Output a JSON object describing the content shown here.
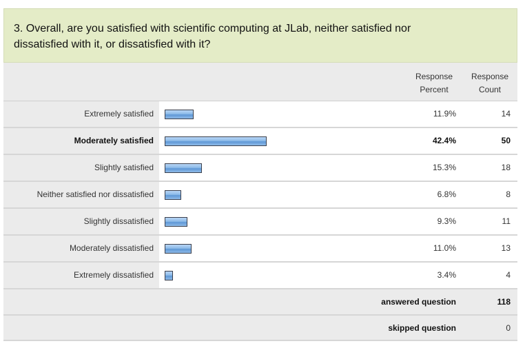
{
  "question": {
    "line1": "3. Overall, are you satisfied with scientific computing at JLab, neither satisfied nor",
    "line2": "dissatisfied with it, or dissatisfied with it?"
  },
  "headers": {
    "percent_line1": "Response",
    "percent_line2": "Percent",
    "count_line1": "Response",
    "count_line2": "Count"
  },
  "rows": [
    {
      "label": "Extremely satisfied",
      "percent": "11.9%",
      "value": 11.9,
      "count": "14",
      "bold": false
    },
    {
      "label": "Moderately satisfied",
      "percent": "42.4%",
      "value": 42.4,
      "count": "50",
      "bold": true
    },
    {
      "label": "Slightly satisfied",
      "percent": "15.3%",
      "value": 15.3,
      "count": "18",
      "bold": false
    },
    {
      "label": "Neither satisfied nor dissatisfied",
      "percent": "6.8%",
      "value": 6.8,
      "count": "8",
      "bold": false
    },
    {
      "label": "Slightly dissatisfied",
      "percent": "9.3%",
      "value": 9.3,
      "count": "11",
      "bold": false
    },
    {
      "label": "Moderately dissatisfied",
      "percent": "11.0%",
      "value": 11.0,
      "count": "13",
      "bold": false
    },
    {
      "label": "Extremely dissatisfied",
      "percent": "3.4%",
      "value": 3.4,
      "count": "4",
      "bold": false
    }
  ],
  "summary": {
    "answered_label": "answered question",
    "answered_value": "118",
    "skipped_label": "skipped question",
    "skipped_value": "0"
  },
  "colors": {
    "question_bg": "#e4ecc7",
    "label_bg": "#ebebeb",
    "bar_fill": "#8cbbe9",
    "bar_border": "#3a3f4c"
  }
}
